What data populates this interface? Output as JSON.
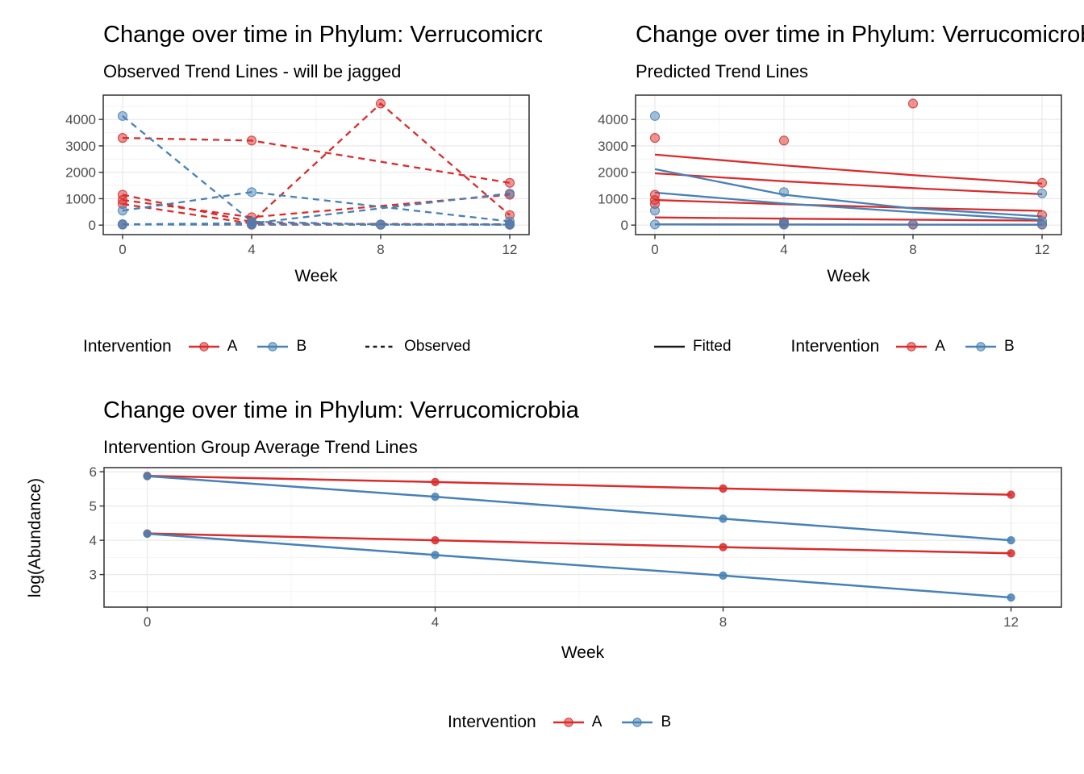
{
  "colors": {
    "intervention_a": "#d92c2c",
    "intervention_b": "#4781b5",
    "linetype_key": "#1a1a1a",
    "grid_major": "#e8e8e8",
    "grid_minor": "#f4f4f4",
    "panel_border": "#3c3c3c",
    "tick_mark": "#333333",
    "tick_label": "#4d4d4d"
  },
  "chart_data": [
    {
      "id": "observed",
      "type": "line",
      "title": "Change over time in Phylum: Verrucomicrobia",
      "subtitle": "Observed Trend Lines - will be jagged",
      "xlabel": "Week",
      "x_ticks": [
        0,
        4,
        8,
        12
      ],
      "y_ticks": [
        0,
        1000,
        2000,
        3000,
        4000
      ],
      "xlim": [
        -0.6,
        12.6
      ],
      "ylim": [
        -360,
        4920
      ],
      "line_style": "dashed",
      "legend": {
        "title": "Intervention",
        "items": [
          {
            "label": "A",
            "color_key": "intervention_a"
          },
          {
            "label": "B",
            "color_key": "intervention_b"
          }
        ],
        "linetype_key": {
          "label": "Observed",
          "dashed": true,
          "position": "right",
          "gap_before": 48
        }
      },
      "series": [
        {
          "group": "A",
          "points": [
            [
              0,
              3300
            ],
            [
              4,
              3200
            ],
            [
              12,
              1600
            ]
          ]
        },
        {
          "group": "A",
          "points": [
            [
              0,
              1150
            ],
            [
              4,
              120
            ],
            [
              8,
              4600
            ],
            [
              12,
              380
            ]
          ]
        },
        {
          "group": "A",
          "points": [
            [
              0,
              950
            ],
            [
              4,
              300
            ],
            [
              12,
              1150
            ]
          ]
        },
        {
          "group": "A",
          "points": [
            [
              0,
              800
            ],
            [
              4,
              60
            ],
            [
              12,
              30
            ]
          ]
        },
        {
          "group": "A",
          "points": [
            [
              0,
              30
            ],
            [
              4,
              15
            ],
            [
              8,
              15
            ],
            [
              12,
              15
            ]
          ]
        },
        {
          "group": "B",
          "points": [
            [
              0,
              4130
            ],
            [
              4,
              130
            ],
            [
              8,
              25
            ],
            [
              12,
              20
            ]
          ]
        },
        {
          "group": "B",
          "points": [
            [
              0,
              550
            ],
            [
              4,
              1250
            ],
            [
              12,
              140
            ]
          ]
        },
        {
          "group": "B",
          "points": [
            [
              0,
              30
            ],
            [
              4,
              70
            ],
            [
              12,
              1200
            ]
          ]
        },
        {
          "group": "B",
          "points": [
            [
              0,
              20
            ],
            [
              4,
              25
            ],
            [
              8,
              20
            ],
            [
              12,
              20
            ]
          ]
        }
      ]
    },
    {
      "id": "predicted",
      "type": "line",
      "title": "Change over time in Phylum: Verrucomicrobia",
      "subtitle": "Predicted Trend Lines",
      "xlabel": "Week",
      "x_ticks": [
        0,
        4,
        8,
        12
      ],
      "y_ticks": [
        0,
        1000,
        2000,
        3000,
        4000
      ],
      "xlim": [
        -0.6,
        12.6
      ],
      "ylim": [
        -360,
        4920
      ],
      "line_style": "solid",
      "legend": {
        "title": "Intervention",
        "items": [
          {
            "label": "A",
            "color_key": "intervention_a"
          },
          {
            "label": "B",
            "color_key": "intervention_b"
          }
        ],
        "linetype_key": {
          "label": "Fitted",
          "dashed": false,
          "position": "left",
          "gap_after": 50
        }
      },
      "series": [
        {
          "group": "A",
          "points": [
            [
              0,
              2670
            ],
            [
              4,
              2260
            ],
            [
              8,
              1890
            ],
            [
              12,
              1570
            ]
          ],
          "markers": false
        },
        {
          "group": "A",
          "points": [
            [
              0,
              1960
            ],
            [
              4,
              1660
            ],
            [
              8,
              1400
            ],
            [
              12,
              1170
            ]
          ],
          "markers": false
        },
        {
          "group": "A",
          "points": [
            [
              0,
              950
            ],
            [
              4,
              790
            ],
            [
              8,
              650
            ],
            [
              12,
              540
            ]
          ],
          "markers": false
        },
        {
          "group": "A",
          "points": [
            [
              0,
              290
            ],
            [
              4,
              245
            ],
            [
              8,
              205
            ],
            [
              12,
              170
            ]
          ],
          "markers": false
        },
        {
          "group": "A",
          "points": [
            [
              0,
              25
            ],
            [
              4,
              22
            ],
            [
              8,
              19
            ],
            [
              12,
              16
            ]
          ],
          "markers": false
        },
        {
          "group": "B",
          "points": [
            [
              0,
              2120
            ],
            [
              4,
              1150
            ],
            [
              8,
              630
            ],
            [
              12,
              330
            ]
          ],
          "markers": false
        },
        {
          "group": "B",
          "points": [
            [
              0,
              1230
            ],
            [
              4,
              820
            ],
            [
              8,
              490
            ],
            [
              12,
              200
            ]
          ],
          "markers": false
        },
        {
          "group": "B",
          "points": [
            [
              0,
              25
            ],
            [
              4,
              21
            ],
            [
              8,
              17
            ],
            [
              12,
              14
            ]
          ],
          "markers": false
        }
      ],
      "scatter": {
        "A": [
          [
            0,
            3300
          ],
          [
            0,
            1150
          ],
          [
            0,
            950
          ],
          [
            0,
            800
          ],
          [
            4,
            3200
          ],
          [
            4,
            120
          ],
          [
            4,
            40
          ],
          [
            8,
            4600
          ],
          [
            8,
            20
          ],
          [
            12,
            1600
          ],
          [
            12,
            380
          ],
          [
            12,
            20
          ]
        ],
        "B": [
          [
            0,
            4130
          ],
          [
            0,
            550
          ],
          [
            0,
            25
          ],
          [
            4,
            1250
          ],
          [
            4,
            90
          ],
          [
            4,
            20
          ],
          [
            8,
            30
          ],
          [
            12,
            1200
          ],
          [
            12,
            150
          ],
          [
            12,
            25
          ]
        ]
      }
    },
    {
      "id": "average",
      "type": "line",
      "title": "Change over time in Phylum: Verrucomicrobia",
      "subtitle": "Intervention Group Average Trend Lines",
      "xlabel": "Week",
      "ylabel": "log(Abundance)",
      "x_ticks": [
        0,
        4,
        8,
        12
      ],
      "y_ticks": [
        3,
        4,
        5,
        6
      ],
      "xlim": [
        -0.6,
        12.7
      ],
      "ylim": [
        2.05,
        6.12
      ],
      "line_style": "solid",
      "legend": {
        "title": "Intervention",
        "items": [
          {
            "label": "A",
            "color_key": "intervention_a"
          },
          {
            "label": "B",
            "color_key": "intervention_b"
          }
        ]
      },
      "series": [
        {
          "group": "A",
          "points": [
            [
              0,
              5.88
            ],
            [
              4,
              5.7
            ],
            [
              8,
              5.51
            ],
            [
              12,
              5.33
            ]
          ]
        },
        {
          "group": "B",
          "points": [
            [
              0,
              5.87
            ],
            [
              4,
              5.27
            ],
            [
              8,
              4.63
            ],
            [
              12,
              4.0
            ]
          ]
        },
        {
          "group": "A",
          "points": [
            [
              0,
              4.2
            ],
            [
              4,
              4.0
            ],
            [
              8,
              3.8
            ],
            [
              12,
              3.62
            ]
          ]
        },
        {
          "group": "B",
          "points": [
            [
              0,
              4.19
            ],
            [
              4,
              3.57
            ],
            [
              8,
              2.97
            ],
            [
              12,
              2.33
            ]
          ]
        }
      ]
    }
  ]
}
